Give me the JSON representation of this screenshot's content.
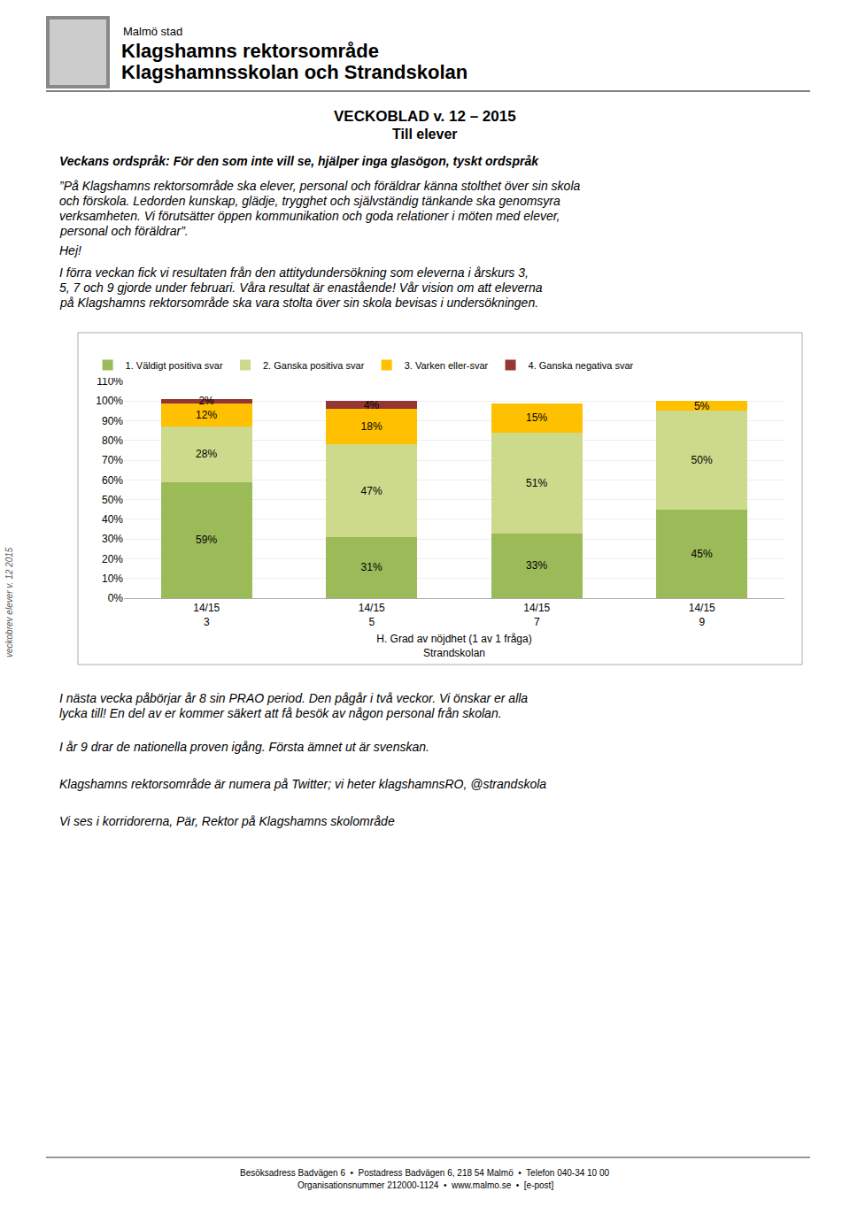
{
  "chart_data": {
    "type": "bar",
    "stacked": true,
    "title": "VECKOBLAD v. 12 – 2015",
    "subtitle": "Till elever",
    "categories": [
      "14/15\n3",
      "14/15\n5",
      "14/15\n7",
      "14/15\n9"
    ],
    "series": [
      {
        "name": "1. Väldigt positiva svar",
        "color": "#9BBB59",
        "values": [
          59,
          31,
          33,
          45
        ],
        "value_labels": [
          "59%",
          "31%",
          "33%",
          "45%"
        ]
      },
      {
        "name": "2. Ganska positiva svar",
        "color": "#CDD98B",
        "values": [
          28,
          47,
          51,
          50
        ],
        "value_labels": [
          "28%",
          "47%",
          "51%",
          "50%"
        ]
      },
      {
        "name": "3. Varken eller-svar",
        "color": "#FFC000",
        "values": [
          12,
          18,
          15,
          5
        ],
        "value_labels": [
          "12%",
          "18%",
          "15%",
          "5%"
        ]
      },
      {
        "name": "4. Ganska negativa svar",
        "color": "#943634",
        "values": [
          2,
          4,
          0,
          0
        ],
        "value_labels": [
          "2%",
          "4%",
          null,
          null
        ]
      }
    ],
    "xlabel": "H. Grad av nöjdhet (1 av 1 fråga)\nStrandskolan",
    "ylim": [
      0,
      110
    ],
    "yticks": [
      {
        "value": 0,
        "label": "0%"
      },
      {
        "value": 10,
        "label": "10%"
      },
      {
        "value": 20,
        "label": "20%"
      },
      {
        "value": 30,
        "label": "30%"
      },
      {
        "value": 40,
        "label": "40%"
      },
      {
        "value": 50,
        "label": "50%"
      },
      {
        "value": 60,
        "label": "60%"
      },
      {
        "value": 70,
        "label": "70%"
      },
      {
        "value": 80,
        "label": "80%"
      },
      {
        "value": 90,
        "label": "90%"
      },
      {
        "value": 100,
        "label": "100%"
      },
      {
        "value": 110,
        "label": "110%"
      }
    ],
    "grid": true,
    "legend": "top left",
    "data_labels": true,
    "annotations": [
      "Malmö stad",
      "Klagshamns rektorsområde",
      "Klagshamnsskolan och Strandskolan",
      "Veckans ordspråk: För den som inte vill se, hjälper inga glasögon, tyskt ordspråk",
      "”På Klagshamns rektorsområde ska elever, personal och föräldrar känna stolthet över sin skola",
      "och förskola. Ledorden kunskap, glädje, trygghet och självständig tänkande ska genomsyra",
      "verksamheten. Vi förutsätter öppen kommunikation och goda relationer i möten med elever,",
      "personal och föräldrar”.",
      "Hej!",
      "I förra veckan fick vi resultaten från den attitydundersökning som eleverna i årskurs 3,",
      "5, 7 och 9 gjorde under februari. Våra resultat är enastående! Vår vision om att eleverna",
      "på Klagshamns rektorsområde ska vara stolta över sin skola bevisas i undersökningen.",
      "I nästa vecka påbörjar år 8 sin PRAO period. Den pågår i två veckor. Vi önskar er alla",
      "lycka till! En del av er kommer säkert att få besök av någon personal från skolan.",
      "I år 9 drar de nationella proven igång. Första ämnet ut är svenskan.",
      "Klagshamns rektorsområde är numera på Twitter; vi heter klagshamnsRO, @strandskola",
      "Vi ses i korridorerna, Pär, Rektor på Klagshamns skolområde",
      "Besöksadress Badvägen 6  •  Postadress Badvägen 6, 218 54 Malmö  •  Telefon 040-34 10 00",
      "Organisationsnummer 212000-1124  •  www.malmo.se  •  [e-post]",
      "veckobrev elever v. 12 2015"
    ]
  }
}
